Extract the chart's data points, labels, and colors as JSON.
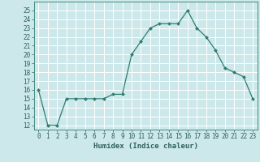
{
  "x": [
    0,
    1,
    2,
    3,
    4,
    5,
    6,
    7,
    8,
    9,
    10,
    11,
    12,
    13,
    14,
    15,
    16,
    17,
    18,
    19,
    20,
    21,
    22,
    23
  ],
  "y": [
    16,
    12,
    12,
    15,
    15,
    15,
    15,
    15,
    15.5,
    15.5,
    20,
    21.5,
    23,
    23.5,
    23.5,
    23.5,
    25,
    23,
    22,
    20.5,
    18.5,
    18,
    17.5,
    15
  ],
  "xlabel": "Humidex (Indice chaleur)",
  "ylim": [
    11.5,
    26
  ],
  "xlim": [
    -0.5,
    23.5
  ],
  "yticks": [
    12,
    13,
    14,
    15,
    16,
    17,
    18,
    19,
    20,
    21,
    22,
    23,
    24,
    25
  ],
  "xticks": [
    0,
    1,
    2,
    3,
    4,
    5,
    6,
    7,
    8,
    9,
    10,
    11,
    12,
    13,
    14,
    15,
    16,
    17,
    18,
    19,
    20,
    21,
    22,
    23
  ],
  "line_color": "#2e7d6e",
  "marker_color": "#2e7d6e",
  "bg_color": "#cce8ea",
  "grid_color": "#ffffff",
  "font_color": "#2e5f5f",
  "tick_fontsize": 5.5,
  "label_fontsize": 6.5
}
